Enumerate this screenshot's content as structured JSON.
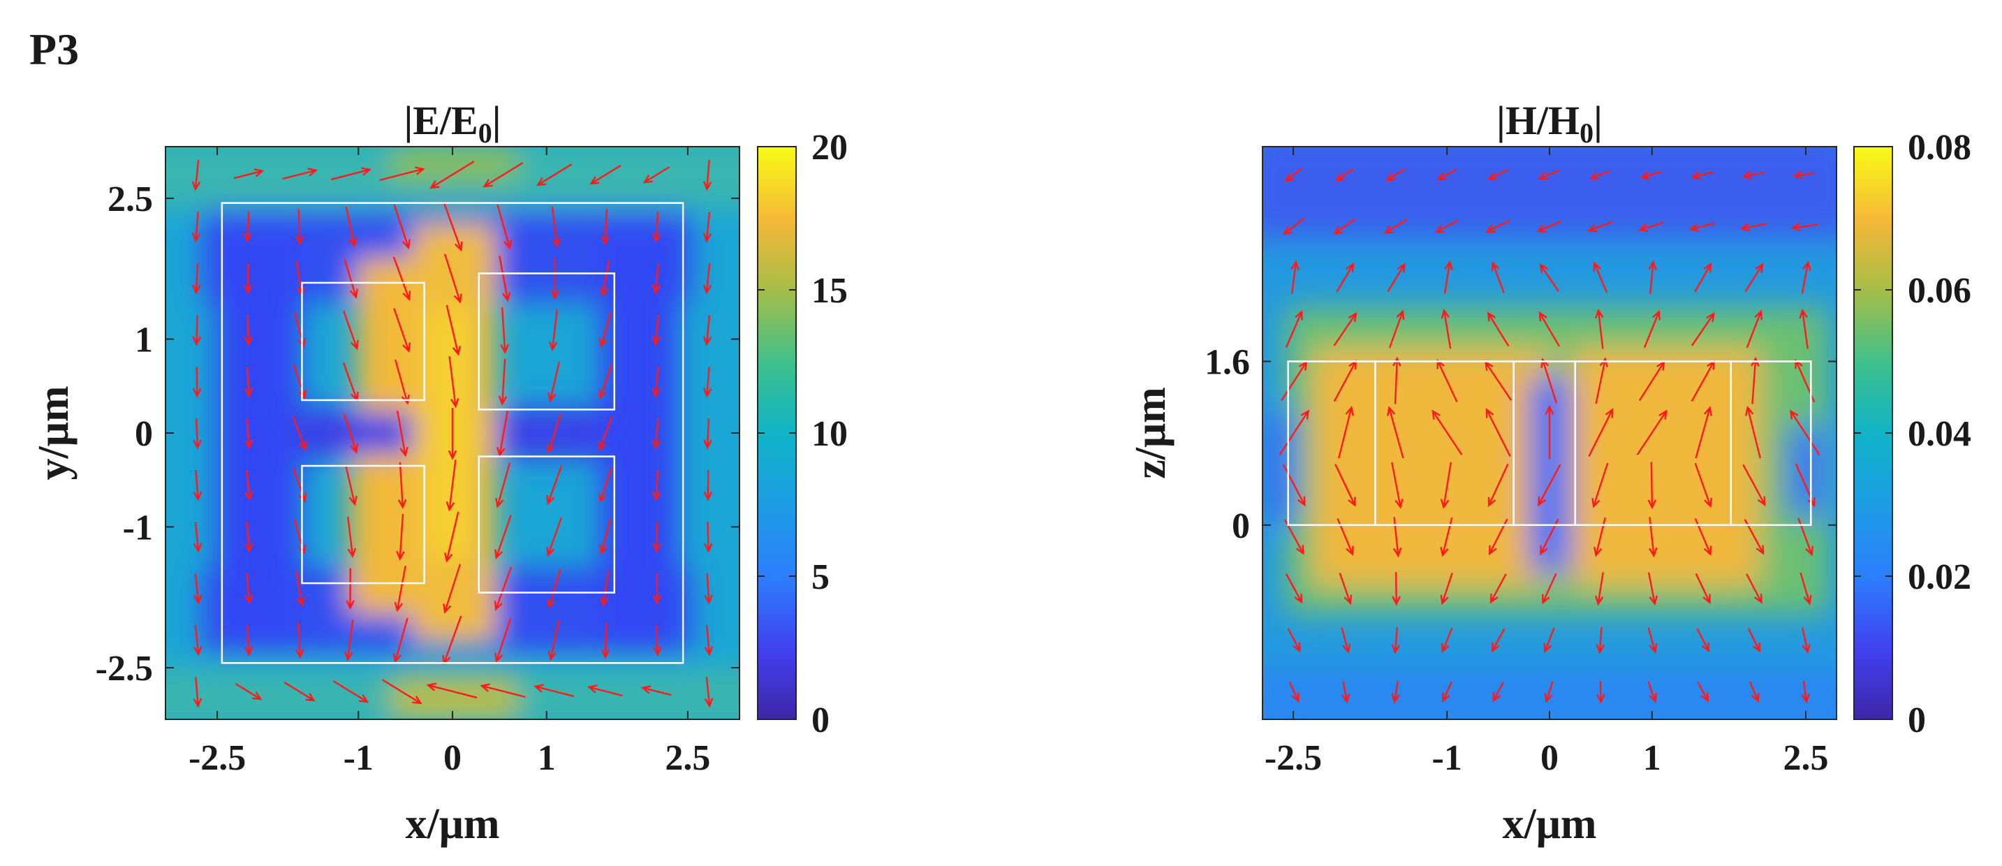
{
  "figure_label": "P3",
  "chart_data": [
    {
      "type": "heatmap",
      "title": "|E/E",
      "title_sub": "0",
      "title_end": "|",
      "xlabel": "x/μm",
      "ylabel": "y/μm",
      "xlim": [
        -3.05,
        3.05
      ],
      "ylim": [
        -3.05,
        3.05
      ],
      "xticks": [
        -2.5,
        -1,
        0,
        1,
        2.5
      ],
      "xtick_labels": [
        "-2.5",
        "-1",
        "0",
        "1",
        "2.5"
      ],
      "yticks": [
        -2.5,
        -1,
        0,
        1,
        2.5
      ],
      "ytick_labels": [
        "-2.5",
        "-1",
        "0",
        "1",
        "2.5"
      ],
      "colorbar": {
        "range": [
          0,
          20
        ],
        "ticks": [
          0,
          5,
          10,
          15,
          20
        ],
        "tick_labels": [
          "0",
          "5",
          "10",
          "15",
          "20"
        ],
        "colormap": "parula"
      },
      "outlines": [
        {
          "x": [
            -2.45,
            2.45
          ],
          "y": [
            -2.45,
            2.45
          ]
        },
        {
          "x": [
            -1.6,
            -0.3
          ],
          "y": [
            0.35,
            1.6
          ]
        },
        {
          "x": [
            0.28,
            1.72
          ],
          "y": [
            0.25,
            1.7
          ]
        },
        {
          "x": [
            -1.6,
            -0.3
          ],
          "y": [
            -1.6,
            -0.35
          ]
        },
        {
          "x": [
            0.28,
            1.72
          ],
          "y": [
            -1.7,
            -0.25
          ]
        }
      ],
      "field_arrows": "red in-plane E-field vectors"
    },
    {
      "type": "heatmap",
      "title": "|H/H",
      "title_sub": "0",
      "title_end": "|",
      "xlabel": "x/μm",
      "ylabel": "z/μm",
      "xlim": [
        -2.8,
        2.8
      ],
      "ylim": [
        -1.9,
        3.7
      ],
      "xticks": [
        -2.5,
        -1,
        0,
        1,
        2.5
      ],
      "xtick_labels": [
        "-2.5",
        "-1",
        "0",
        "1",
        "2.5"
      ],
      "yticks": [
        0,
        1.6
      ],
      "ytick_labels": [
        "0",
        "1.6"
      ],
      "colorbar": {
        "range": [
          0,
          0.08
        ],
        "ticks": [
          0,
          0.02,
          0.04,
          0.06,
          0.08
        ],
        "tick_labels": [
          "0",
          "0.02",
          "0.04",
          "0.06",
          "0.08"
        ],
        "colormap": "parula"
      },
      "outlines": [
        {
          "x": [
            -2.55,
            2.55
          ],
          "y": [
            0,
            1.6
          ]
        }
      ],
      "outline_dividers_x": [
        -1.7,
        -0.35,
        0.25,
        1.77
      ],
      "field_arrows": "red in-plane H-field vectors"
    }
  ],
  "colors": {
    "arrow": "#ff1a1a",
    "outline": "#ffffff",
    "axis": "#262626"
  }
}
